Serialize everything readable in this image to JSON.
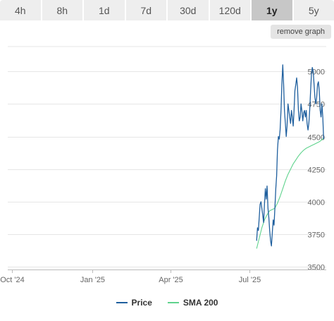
{
  "tabs": [
    {
      "label": "4h",
      "active": false
    },
    {
      "label": "8h",
      "active": false
    },
    {
      "label": "1d",
      "active": false
    },
    {
      "label": "7d",
      "active": false
    },
    {
      "label": "30d",
      "active": false
    },
    {
      "label": "120d",
      "active": false
    },
    {
      "label": "1y",
      "active": true
    },
    {
      "label": "5y",
      "active": false
    }
  ],
  "remove_graph_label": "remove graph",
  "legend": {
    "price_label": "Price",
    "sma_label": "SMA 200"
  },
  "colors": {
    "price": "#1f5f9e",
    "sma": "#5fd38d"
  },
  "chart_data": {
    "type": "line",
    "x_labels": [
      "Oct '24",
      "Jan '25",
      "Apr '25",
      "Jul '25"
    ],
    "x_label_dates": [
      "2024-10-01",
      "2025-01-01",
      "2025-04-01",
      "2025-07-01"
    ],
    "xlim": [
      "2024-09-26",
      "2025-09-27"
    ],
    "y_ticks": [
      3500,
      3750,
      4000,
      4250,
      4500,
      4750,
      5000
    ],
    "ylim": [
      3480,
      5190
    ],
    "grid": true,
    "legend_position": "bottom",
    "series": [
      {
        "name": "Price",
        "color": "#1f5f9e",
        "points": [
          [
            "2025-07-09",
            3700
          ],
          [
            "2025-07-10",
            3800
          ],
          [
            "2025-07-11",
            3780
          ],
          [
            "2025-07-13",
            3980
          ],
          [
            "2025-07-14",
            4000
          ],
          [
            "2025-07-16",
            3900
          ],
          [
            "2025-07-17",
            3840
          ],
          [
            "2025-07-18",
            3980
          ],
          [
            "2025-07-19",
            4100
          ],
          [
            "2025-07-20",
            4020
          ],
          [
            "2025-07-21",
            4120
          ],
          [
            "2025-07-22",
            3950
          ],
          [
            "2025-07-23",
            3880
          ],
          [
            "2025-07-24",
            3780
          ],
          [
            "2025-07-25",
            3700
          ],
          [
            "2025-07-26",
            3660
          ],
          [
            "2025-07-27",
            3760
          ],
          [
            "2025-07-28",
            3860
          ],
          [
            "2025-07-29",
            3820
          ],
          [
            "2025-07-30",
            3950
          ],
          [
            "2025-07-31",
            4100
          ],
          [
            "2025-08-01",
            4200
          ],
          [
            "2025-08-02",
            4400
          ],
          [
            "2025-08-03",
            4500
          ],
          [
            "2025-08-04",
            4480
          ],
          [
            "2025-08-05",
            4550
          ],
          [
            "2025-08-06",
            4700
          ],
          [
            "2025-08-07",
            4900
          ],
          [
            "2025-08-08",
            5050
          ],
          [
            "2025-08-09",
            4900
          ],
          [
            "2025-08-10",
            4700
          ],
          [
            "2025-08-11",
            4600
          ],
          [
            "2025-08-12",
            4500
          ],
          [
            "2025-08-13",
            4580
          ],
          [
            "2025-08-14",
            4750
          ],
          [
            "2025-08-15",
            4700
          ],
          [
            "2025-08-16",
            4650
          ],
          [
            "2025-08-17",
            4600
          ],
          [
            "2025-08-18",
            4700
          ],
          [
            "2025-08-19",
            4650
          ],
          [
            "2025-08-20",
            4580
          ],
          [
            "2025-08-21",
            4700
          ],
          [
            "2025-08-22",
            4850
          ],
          [
            "2025-08-23",
            4900
          ],
          [
            "2025-08-24",
            4950
          ],
          [
            "2025-08-25",
            4880
          ],
          [
            "2025-08-26",
            4700
          ],
          [
            "2025-08-27",
            4620
          ],
          [
            "2025-08-28",
            4650
          ],
          [
            "2025-08-29",
            4750
          ],
          [
            "2025-08-30",
            4700
          ],
          [
            "2025-08-31",
            4620
          ],
          [
            "2025-09-01",
            4680
          ],
          [
            "2025-09-02",
            4700
          ],
          [
            "2025-09-03",
            4650
          ],
          [
            "2025-09-04",
            4700
          ],
          [
            "2025-09-05",
            4600
          ],
          [
            "2025-09-06",
            4550
          ],
          [
            "2025-09-07",
            4600
          ],
          [
            "2025-09-08",
            4700
          ],
          [
            "2025-09-09",
            4850
          ],
          [
            "2025-09-10",
            4980
          ],
          [
            "2025-09-11",
            5030
          ],
          [
            "2025-09-12",
            5000
          ],
          [
            "2025-09-13",
            4900
          ],
          [
            "2025-09-14",
            4800
          ],
          [
            "2025-09-15",
            4750
          ],
          [
            "2025-09-16",
            4800
          ],
          [
            "2025-09-17",
            4900
          ],
          [
            "2025-09-18",
            4920
          ],
          [
            "2025-09-19",
            4850
          ],
          [
            "2025-09-20",
            4700
          ],
          [
            "2025-09-21",
            4650
          ],
          [
            "2025-09-22",
            4750
          ],
          [
            "2025-09-23",
            4650
          ],
          [
            "2025-09-24",
            4480
          ]
        ]
      },
      {
        "name": "SMA 200",
        "color": "#5fd38d",
        "points": [
          [
            "2025-07-09",
            3640
          ],
          [
            "2025-07-12",
            3720
          ],
          [
            "2025-07-15",
            3800
          ],
          [
            "2025-07-18",
            3860
          ],
          [
            "2025-07-21",
            3900
          ],
          [
            "2025-07-24",
            3930
          ],
          [
            "2025-07-27",
            3940
          ],
          [
            "2025-07-30",
            3950
          ],
          [
            "2025-08-02",
            3990
          ],
          [
            "2025-08-05",
            4040
          ],
          [
            "2025-08-08",
            4100
          ],
          [
            "2025-08-11",
            4160
          ],
          [
            "2025-08-14",
            4210
          ],
          [
            "2025-08-17",
            4250
          ],
          [
            "2025-08-20",
            4290
          ],
          [
            "2025-08-23",
            4320
          ],
          [
            "2025-08-26",
            4350
          ],
          [
            "2025-08-29",
            4375
          ],
          [
            "2025-09-01",
            4395
          ],
          [
            "2025-09-04",
            4410
          ],
          [
            "2025-09-07",
            4420
          ],
          [
            "2025-09-10",
            4430
          ],
          [
            "2025-09-13",
            4440
          ],
          [
            "2025-09-16",
            4450
          ],
          [
            "2025-09-19",
            4460
          ],
          [
            "2025-09-22",
            4475
          ],
          [
            "2025-09-24",
            4490
          ]
        ]
      }
    ]
  }
}
